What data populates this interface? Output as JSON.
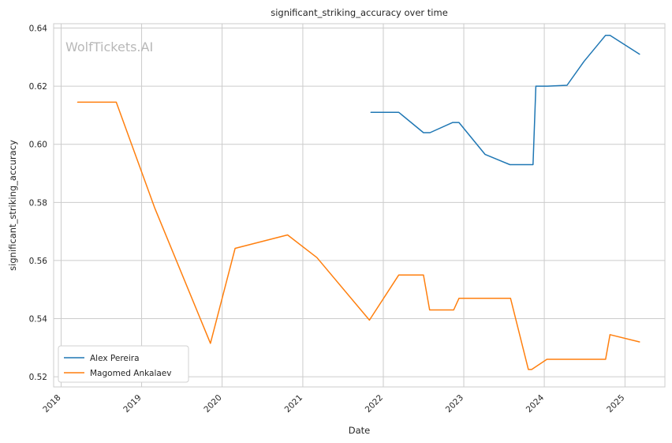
{
  "chart_data": {
    "type": "line",
    "title": "significant_striking_accuracy over time",
    "xlabel": "Date",
    "ylabel": "significant_striking_accuracy",
    "watermark": "WolfTickets.AI",
    "xlim": [
      "2017-11-28",
      "2025-07-01"
    ],
    "ylim": [
      0.5165,
      0.6415
    ],
    "x_ticks": [
      "2018-01-01",
      "2019-01-01",
      "2020-01-01",
      "2021-01-01",
      "2022-01-01",
      "2023-01-01",
      "2024-01-01",
      "2025-01-01"
    ],
    "x_tick_labels": [
      "2018",
      "2019",
      "2020",
      "2021",
      "2022",
      "2023",
      "2024",
      "2025"
    ],
    "y_ticks": [
      0.52,
      0.54,
      0.56,
      0.58,
      0.6,
      0.62,
      0.64
    ],
    "y_tick_labels": [
      "0.52",
      "0.54",
      "0.56",
      "0.58",
      "0.60",
      "0.62",
      "0.64"
    ],
    "grid": true,
    "legend_position": "lower-left",
    "series": [
      {
        "name": "Alex Pereira",
        "color": "#1f77b4",
        "points": [
          [
            "2021-11-06",
            0.611
          ],
          [
            "2022-03-12",
            0.611
          ],
          [
            "2022-07-02",
            0.604
          ],
          [
            "2022-08-01",
            0.604
          ],
          [
            "2022-11-12",
            0.6075
          ],
          [
            "2022-12-10",
            0.6075
          ],
          [
            "2023-04-08",
            0.5965
          ],
          [
            "2023-07-29",
            0.593
          ],
          [
            "2023-11-11",
            0.593
          ],
          [
            "2023-11-24",
            0.62
          ],
          [
            "2024-01-15",
            0.62
          ],
          [
            "2024-04-13",
            0.6203
          ],
          [
            "2024-06-29",
            0.6285
          ],
          [
            "2024-10-05",
            0.6375
          ],
          [
            "2024-10-25",
            0.6375
          ],
          [
            "2025-03-08",
            0.631
          ]
        ]
      },
      {
        "name": "Magomed Ankalaev",
        "color": "#ff7f0e",
        "points": [
          [
            "2018-03-17",
            0.6145
          ],
          [
            "2018-09-08",
            0.6145
          ],
          [
            "2019-03-02",
            0.578
          ],
          [
            "2019-11-09",
            0.5315
          ],
          [
            "2020-02-29",
            0.5642
          ],
          [
            "2020-10-24",
            0.5688
          ],
          [
            "2021-03-06",
            0.561
          ],
          [
            "2021-10-30",
            0.5395
          ],
          [
            "2022-03-12",
            0.555
          ],
          [
            "2022-07-02",
            0.555
          ],
          [
            "2022-07-30",
            0.543
          ],
          [
            "2022-11-16",
            0.543
          ],
          [
            "2022-12-10",
            0.547
          ],
          [
            "2023-08-01",
            0.547
          ],
          [
            "2023-10-21",
            0.5225
          ],
          [
            "2023-11-05",
            0.5225
          ],
          [
            "2024-01-13",
            0.526
          ],
          [
            "2024-10-05",
            0.526
          ],
          [
            "2024-10-25",
            0.5345
          ],
          [
            "2025-03-08",
            0.532
          ]
        ]
      }
    ]
  }
}
